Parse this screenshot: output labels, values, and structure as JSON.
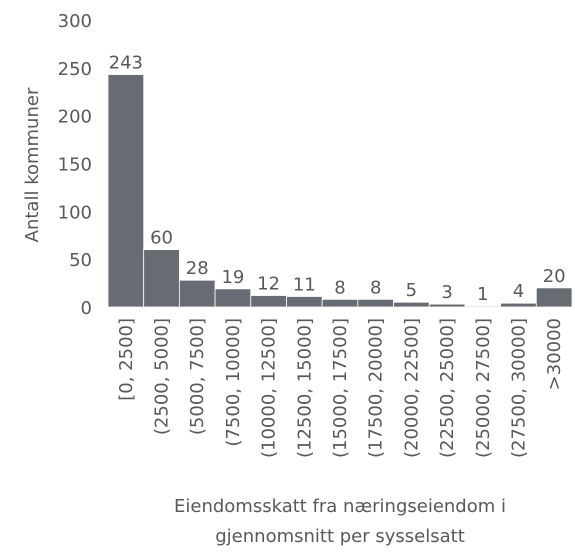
{
  "chart_data": {
    "type": "bar",
    "ylabel": "Antall kommuner",
    "xlabel": [
      "Eiendomsskatt fra næringseiendom i",
      "gjennomsnitt per sysselsatt"
    ],
    "categories": [
      "[0, 2500]",
      "(2500, 5000]",
      "(5000, 7500]",
      "(7500, 10000]",
      "(10000, 12500]",
      "(12500, 15000]",
      "(15000, 17500]",
      "(17500, 20000]",
      "(20000, 22500]",
      "(22500, 25000]",
      "(25000, 27500]",
      "(27500, 30000]",
      ">30000"
    ],
    "values": [
      243,
      60,
      28,
      19,
      12,
      11,
      8,
      8,
      5,
      3,
      1,
      4,
      20
    ],
    "color": "#676c73",
    "ylim": [
      0,
      300
    ],
    "yticks": [
      0,
      50,
      100,
      150,
      200,
      250,
      300
    ]
  }
}
